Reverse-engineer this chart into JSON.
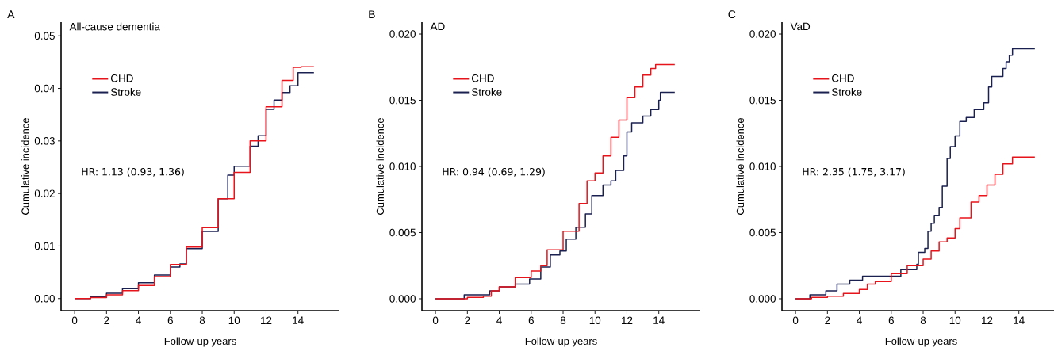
{
  "chart_data": [
    {
      "type": "step",
      "title": "All-cause dementia",
      "xlabel": "Follow-up years",
      "ylabel": "Cumulative incidence",
      "annotations": [
        "A",
        "HR: 1.13 (0.93, 1.36)"
      ],
      "legend": "top left",
      "xlim": [
        -0.85,
        16.6
      ],
      "ylim": [
        -0.0023,
        0.0526
      ],
      "xticks": [
        0,
        2,
        4,
        6,
        8,
        10,
        12,
        14
      ],
      "yticks": [
        {
          "value": 0,
          "label": "0.00"
        },
        0.01,
        0.02,
        0.03,
        0.04,
        0.05
      ],
      "series": [
        {
          "name": "CHD",
          "color": "#e8141c",
          "x": [
            0,
            1,
            2,
            3,
            4,
            5,
            6,
            7,
            8,
            9,
            10,
            11,
            12,
            13,
            13.7,
            14.2,
            15
          ],
          "values": [
            0,
            0.0002,
            0.0007,
            0.0015,
            0.0025,
            0.0042,
            0.0065,
            0.0098,
            0.0135,
            0.019,
            0.024,
            0.03,
            0.0365,
            0.0415,
            0.044,
            0.0441,
            0.0441
          ]
        },
        {
          "name": "Stroke",
          "color": "#1a2150",
          "x": [
            0,
            1,
            2,
            3,
            4,
            5,
            6,
            6.6,
            7,
            8,
            9,
            9.6,
            10,
            11,
            11.5,
            12,
            12.5,
            13,
            13.5,
            14,
            15
          ],
          "values": [
            0,
            0.0003,
            0.001,
            0.0019,
            0.003,
            0.0045,
            0.006,
            0.0066,
            0.0095,
            0.0128,
            0.019,
            0.0235,
            0.0252,
            0.029,
            0.031,
            0.036,
            0.0378,
            0.0392,
            0.0405,
            0.043,
            0.043
          ]
        }
      ]
    },
    {
      "type": "step",
      "title": "AD",
      "xlabel": "Follow-up years",
      "ylabel": "Cumulative incidence",
      "annotations": [
        "B",
        "HR: 0.94 (0.69, 1.29)"
      ],
      "legend": "top left",
      "xlim": [
        -0.85,
        16.6
      ],
      "ylim": [
        -0.0009,
        0.0209
      ],
      "xticks": [
        0,
        2,
        4,
        6,
        8,
        10,
        12,
        14
      ],
      "yticks": [
        {
          "value": 0,
          "label": "0.000"
        },
        0.005,
        {
          "value": 0.01,
          "label": "0.010"
        },
        0.015,
        {
          "value": 0.02,
          "label": "0.020"
        }
      ],
      "series": [
        {
          "name": "CHD",
          "color": "#e8141c",
          "x": [
            0,
            2,
            3,
            3.5,
            4,
            5,
            6,
            6.6,
            7,
            8,
            9,
            9.5,
            10,
            10.5,
            11,
            11.5,
            12,
            12.5,
            13,
            13.5,
            13.8,
            15
          ],
          "values": [
            0,
            0.0001,
            0.0002,
            0.0006,
            0.0009,
            0.0016,
            0.0021,
            0.0025,
            0.0037,
            0.0051,
            0.0072,
            0.0089,
            0.0095,
            0.0108,
            0.0122,
            0.0135,
            0.0152,
            0.016,
            0.0169,
            0.0174,
            0.0177,
            0.0177
          ]
        },
        {
          "name": "Stroke",
          "color": "#1a2150",
          "x": [
            0,
            1.8,
            3.4,
            4,
            5,
            5.9,
            6.6,
            7.2,
            7.8,
            8.2,
            8.8,
            9.4,
            9.8,
            10.5,
            11,
            11.3,
            11.8,
            12,
            12.3,
            13,
            13.5,
            14,
            14.1,
            15
          ],
          "values": [
            0,
            0.0003,
            0.0006,
            0.0009,
            0.0011,
            0.0015,
            0.0024,
            0.0033,
            0.0036,
            0.0045,
            0.0054,
            0.0064,
            0.0078,
            0.0086,
            0.0089,
            0.0097,
            0.0108,
            0.0126,
            0.0133,
            0.0138,
            0.0143,
            0.015,
            0.0156,
            0.0156
          ]
        }
      ]
    },
    {
      "type": "step",
      "title": "VaD",
      "xlabel": "Follow-up years",
      "ylabel": "Cumulative incidence",
      "annotations": [
        "C",
        "HR: 2.35 (1.75, 3.17)"
      ],
      "legend": "top left",
      "xlim": [
        -0.85,
        16.6
      ],
      "ylim": [
        -0.0009,
        0.0209
      ],
      "xticks": [
        0,
        2,
        4,
        6,
        8,
        10,
        12,
        14
      ],
      "yticks": [
        {
          "value": 0,
          "label": "0.000"
        },
        0.005,
        {
          "value": 0.01,
          "label": "0.010"
        },
        0.015,
        {
          "value": 0.02,
          "label": "0.020"
        }
      ],
      "series": [
        {
          "name": "CHD",
          "color": "#e8141c",
          "x": [
            0,
            1,
            2,
            3,
            4,
            4.5,
            5,
            6,
            7,
            8,
            8.5,
            9,
            9.5,
            10,
            10.3,
            11,
            11.5,
            12,
            12.5,
            13,
            13.6,
            15
          ],
          "values": [
            0,
            0.0001,
            0.0002,
            0.0004,
            0.0007,
            0.0011,
            0.0013,
            0.0019,
            0.0025,
            0.003,
            0.0036,
            0.0043,
            0.0046,
            0.0053,
            0.0061,
            0.0073,
            0.0078,
            0.0086,
            0.0094,
            0.0102,
            0.0107,
            0.0107
          ]
        },
        {
          "name": "Stroke",
          "color": "#1a2150",
          "x": [
            0,
            0.9,
            1.9,
            2.6,
            3.4,
            4.2,
            6.6,
            7.6,
            7.7,
            8.1,
            8.3,
            8.5,
            8.7,
            9.0,
            9.2,
            9.5,
            9.7,
            10,
            10.3,
            10.7,
            11.2,
            11.8,
            12.1,
            12.3,
            13,
            13.2,
            13.4,
            13.6,
            15
          ],
          "values": [
            0,
            0.0003,
            0.0006,
            0.0011,
            0.0014,
            0.0017,
            0.0022,
            0.0026,
            0.0035,
            0.0038,
            0.0051,
            0.0057,
            0.0063,
            0.0069,
            0.0085,
            0.0106,
            0.0115,
            0.0123,
            0.0134,
            0.0137,
            0.0143,
            0.0148,
            0.016,
            0.0168,
            0.0174,
            0.0179,
            0.0184,
            0.0189,
            0.0189
          ]
        }
      ]
    }
  ]
}
